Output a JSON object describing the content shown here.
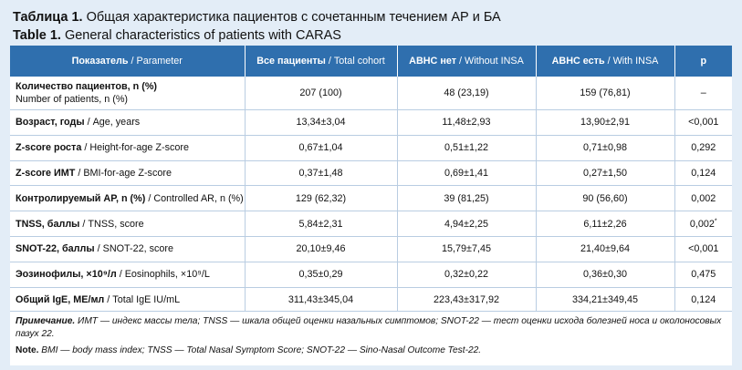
{
  "title": {
    "ru_label": "Таблица 1.",
    "ru_text": "Общая характеристика пациентов с сочетанным течением АР и БА",
    "en_label": "Table 1.",
    "en_text": "General characteristics of patients with CARAS"
  },
  "table": {
    "headers": [
      {
        "bold": "Показатель",
        "rest": " / Parameter"
      },
      {
        "bold": "Все пациенты",
        "rest": " / Total cohort"
      },
      {
        "bold": "АВНС нет",
        "rest": " / Without INSA"
      },
      {
        "bold": "АВНС есть",
        "rest": " / With INSA"
      },
      {
        "bold": "p",
        "rest": ""
      }
    ],
    "rows": [
      {
        "bold": "Количество пациентов, n (%)",
        "rest": "",
        "line2": "Number of patients, n (%)",
        "sup": "",
        "c1": "207 (100)",
        "c2": "48 (23,19)",
        "c3": "159 (76,81)",
        "p": "–",
        "p_sup": ""
      },
      {
        "bold": "Возраст, годы",
        "rest": " / Age, years",
        "line2": "",
        "sup": "",
        "c1": "13,34±3,04",
        "c2": "11,48±2,93",
        "c3": "13,90±2,91",
        "p": "<0,001",
        "p_sup": ""
      },
      {
        "bold": "Z-score роста",
        "rest": " / Height-for-age Z-score",
        "line2": "",
        "sup": "",
        "c1": "0,67±1,04",
        "c2": "0,51±1,22",
        "c3": "0,71±0,98",
        "p": "0,292",
        "p_sup": ""
      },
      {
        "bold": "Z-score ИМТ",
        "rest": " / BMI-for-age Z-score",
        "line2": "",
        "sup": "",
        "c1": "0,37±1,48",
        "c2": "0,69±1,41",
        "c3": "0,27±1,50",
        "p": "0,124",
        "p_sup": ""
      },
      {
        "bold": "Контролируемый АР, n (%)",
        "rest": " / Controlled AR, n (%)",
        "line2": "",
        "sup": "",
        "c1": "129 (62,32)",
        "c2": "39 (81,25)",
        "c3": "90 (56,60)",
        "p": "0,002",
        "p_sup": ""
      },
      {
        "bold": "TNSS, баллы",
        "rest": " / TNSS, score",
        "line2": "",
        "sup": "",
        "c1": "5,84±2,31",
        "c2": "4,94±2,25",
        "c3": "6,11±2,26",
        "p": "0,002",
        "p_sup": "*"
      },
      {
        "bold": "SNOT-22, баллы",
        "rest": " / SNOT-22, score",
        "line2": "",
        "sup": "",
        "c1": "20,10±9,46",
        "c2": "15,79±7,45",
        "c3": "21,40±9,64",
        "p": "<0,001",
        "p_sup": ""
      },
      {
        "bold": "Эозинофилы, ×10⁹/л",
        "rest": " / Eosinophils, ×10⁹/L",
        "line2": "",
        "sup": "",
        "c1": "0,35±0,29",
        "c2": "0,32±0,22",
        "c3": "0,36±0,30",
        "p": "0,475",
        "p_sup": ""
      },
      {
        "bold": "Общий IgE, МЕ/мл",
        "rest": " / Total IgE IU/mL",
        "line2": "",
        "sup": "",
        "c1": "311,43±345,04",
        "c2": "223,43±317,92",
        "c3": "334,21±349,45",
        "p": "0,124",
        "p_sup": ""
      }
    ]
  },
  "notes": {
    "ru_label": "Примечание.",
    "ru_text": " ИМТ — индекс массы тела; TNSS — шкала общей оценки назальных симптомов; SNOT-22 — тест оценки исхода болезней носа и околоносовых пазух 22.",
    "en_label": "Note.",
    "en_text": " BMI — body mass index; TNSS — Total Nasal Symptom Score; SNOT-22 — Sino-Nasal Outcome Test-22."
  },
  "colors": {
    "header_bg": "#2f6fae",
    "frame_bg": "#e3edf7",
    "row_border": "#b9cde2"
  }
}
